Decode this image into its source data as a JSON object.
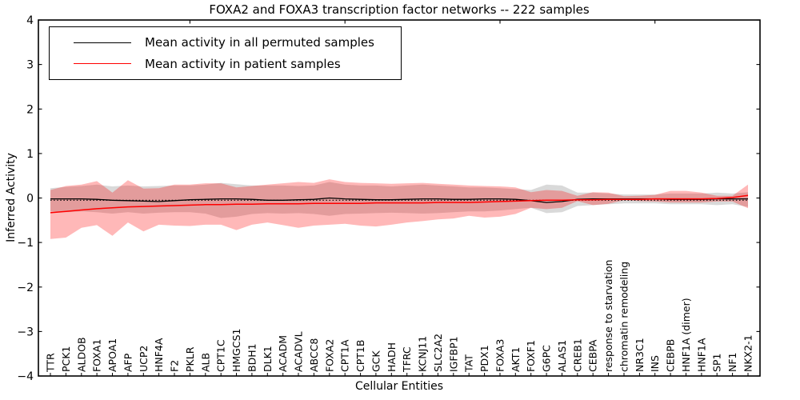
{
  "legend": {
    "items": [
      {
        "label": "Mean activity in all permuted samples",
        "color": "#000000"
      },
      {
        "label": "Mean activity in patient samples",
        "color": "#ff0000"
      }
    ]
  },
  "chart_data": {
    "type": "line",
    "title": "FOXA2 and FOXA3 transcription factor networks -- 222 samples",
    "xlabel": "Cellular Entities",
    "ylabel": "Inferred Activity",
    "ylim": [
      -4,
      4
    ],
    "yticks": [
      4,
      3,
      2,
      1,
      0,
      -1,
      -2,
      -3,
      -4
    ],
    "grid": false,
    "legend_position": "upper left",
    "categories": [
      "TTR",
      "PCK1",
      "ALDOB",
      "FOXA1",
      "APOA1",
      "AFP",
      "UCP2",
      "HNF4A",
      "F2",
      "PKLR",
      "ALB",
      "CPT1C",
      "HMGCS1",
      "BDH1",
      "DLK1",
      "ACADM",
      "ACADVL",
      "ABCC8",
      "FOXA2",
      "CPT1A",
      "CPT1B",
      "GCK",
      "HADH",
      "TFRC",
      "KCNJ11",
      "SLC2A2",
      "IGFBP1",
      "TAT",
      "PDX1",
      "FOXA3",
      "AKT1",
      "FOXF1",
      "G6PC",
      "ALAS1",
      "CREB1",
      "CEBPA",
      "response to starvation",
      "chromatin remodeling",
      "NR3C1",
      "INS",
      "CEBPB",
      "HNF1A (dimer)",
      "HNF1A",
      "SP1",
      "NF1",
      "NKX2-1"
    ],
    "series": [
      {
        "name": "Mean activity in all permuted samples",
        "color": "#000000",
        "style": "solid",
        "width": 1.3,
        "values": [
          -0.02,
          -0.02,
          -0.02,
          -0.03,
          -0.05,
          -0.06,
          -0.07,
          -0.08,
          -0.06,
          -0.04,
          -0.03,
          -0.02,
          -0.02,
          -0.03,
          -0.05,
          -0.05,
          -0.04,
          -0.03,
          0,
          -0.02,
          -0.03,
          -0.04,
          -0.04,
          -0.03,
          -0.02,
          -0.02,
          -0.03,
          -0.03,
          -0.02,
          -0.02,
          -0.03,
          -0.06,
          -0.1,
          -0.08,
          -0.03,
          -0.02,
          -0.02,
          -0.02,
          -0.02,
          -0.02,
          -0.03,
          -0.03,
          -0.03,
          -0.02,
          -0.02,
          -0.02
        ]
      },
      {
        "name": "Mean activity in patient samples",
        "color": "#ff0000",
        "style": "solid",
        "width": 1.5,
        "values": [
          -0.33,
          -0.3,
          -0.27,
          -0.24,
          -0.22,
          -0.2,
          -0.19,
          -0.18,
          -0.17,
          -0.16,
          -0.15,
          -0.15,
          -0.14,
          -0.14,
          -0.13,
          -0.13,
          -0.13,
          -0.12,
          -0.12,
          -0.12,
          -0.12,
          -0.11,
          -0.11,
          -0.11,
          -0.11,
          -0.1,
          -0.1,
          -0.1,
          -0.09,
          -0.08,
          -0.07,
          -0.06,
          -0.05,
          -0.05,
          -0.04,
          -0.04,
          -0.03,
          -0.03,
          -0.03,
          -0.02,
          -0.02,
          -0.02,
          -0.02,
          -0.01,
          0.01,
          0.06
        ]
      },
      {
        "name": "dotted-line",
        "color": "#000000",
        "style": "dotted",
        "width": 1.2,
        "values": [
          -0.05,
          -0.05,
          -0.05,
          -0.05,
          -0.05,
          -0.05,
          -0.05,
          -0.05,
          -0.05,
          -0.05,
          -0.05,
          -0.05,
          -0.05,
          -0.05,
          -0.05,
          -0.05,
          -0.05,
          -0.05,
          -0.05,
          -0.05,
          -0.05,
          -0.05,
          -0.05,
          -0.05,
          -0.05,
          -0.05,
          -0.05,
          -0.05,
          -0.05,
          -0.05,
          -0.05,
          -0.05,
          -0.05,
          -0.05,
          -0.05,
          -0.05,
          -0.05,
          -0.05,
          -0.05,
          -0.05,
          -0.05,
          -0.05,
          -0.05,
          -0.05,
          -0.05,
          -0.05
        ]
      }
    ],
    "bands": [
      {
        "name": "permuted-range",
        "color": "#000000",
        "opacity": 0.15,
        "upper": [
          0.22,
          0.25,
          0.27,
          0.3,
          0.26,
          0.28,
          0.26,
          0.27,
          0.28,
          0.28,
          0.3,
          0.34,
          0.31,
          0.28,
          0.28,
          0.28,
          0.27,
          0.28,
          0.36,
          0.3,
          0.28,
          0.28,
          0.26,
          0.28,
          0.3,
          0.28,
          0.26,
          0.24,
          0.24,
          0.22,
          0.2,
          0.18,
          0.3,
          0.28,
          0.12,
          0.12,
          0.1,
          0.08,
          0.08,
          0.08,
          0.1,
          0.1,
          0.1,
          0.12,
          0.1,
          0.13
        ],
        "lower": [
          -0.3,
          -0.32,
          -0.3,
          -0.32,
          -0.35,
          -0.32,
          -0.35,
          -0.33,
          -0.32,
          -0.32,
          -0.35,
          -0.45,
          -0.42,
          -0.36,
          -0.34,
          -0.35,
          -0.34,
          -0.36,
          -0.4,
          -0.36,
          -0.35,
          -0.34,
          -0.33,
          -0.34,
          -0.35,
          -0.34,
          -0.32,
          -0.3,
          -0.3,
          -0.28,
          -0.25,
          -0.22,
          -0.34,
          -0.32,
          -0.18,
          -0.16,
          -0.14,
          -0.12,
          -0.12,
          -0.12,
          -0.14,
          -0.14,
          -0.14,
          -0.16,
          -0.14,
          -0.2
        ]
      },
      {
        "name": "patient-range",
        "color": "#ff0000",
        "opacity": 0.28,
        "upper": [
          0.18,
          0.27,
          0.3,
          0.38,
          0.12,
          0.4,
          0.21,
          0.22,
          0.3,
          0.3,
          0.33,
          0.33,
          0.24,
          0.27,
          0.3,
          0.33,
          0.36,
          0.34,
          0.42,
          0.36,
          0.34,
          0.33,
          0.32,
          0.33,
          0.34,
          0.32,
          0.3,
          0.28,
          0.27,
          0.26,
          0.24,
          0.13,
          0.18,
          0.16,
          0.05,
          0.13,
          0.12,
          0.04,
          0.05,
          0.07,
          0.16,
          0.16,
          0.12,
          0.05,
          0.05,
          0.3
        ],
        "lower": [
          -0.92,
          -0.89,
          -0.67,
          -0.61,
          -0.85,
          -0.55,
          -0.75,
          -0.6,
          -0.62,
          -0.63,
          -0.6,
          -0.6,
          -0.72,
          -0.6,
          -0.55,
          -0.61,
          -0.67,
          -0.62,
          -0.6,
          -0.58,
          -0.62,
          -0.64,
          -0.6,
          -0.55,
          -0.52,
          -0.48,
          -0.46,
          -0.4,
          -0.44,
          -0.42,
          -0.36,
          -0.22,
          -0.25,
          -0.22,
          -0.07,
          -0.16,
          -0.13,
          -0.05,
          -0.07,
          -0.08,
          -0.1,
          -0.1,
          -0.1,
          -0.08,
          -0.08,
          -0.23
        ]
      }
    ]
  }
}
